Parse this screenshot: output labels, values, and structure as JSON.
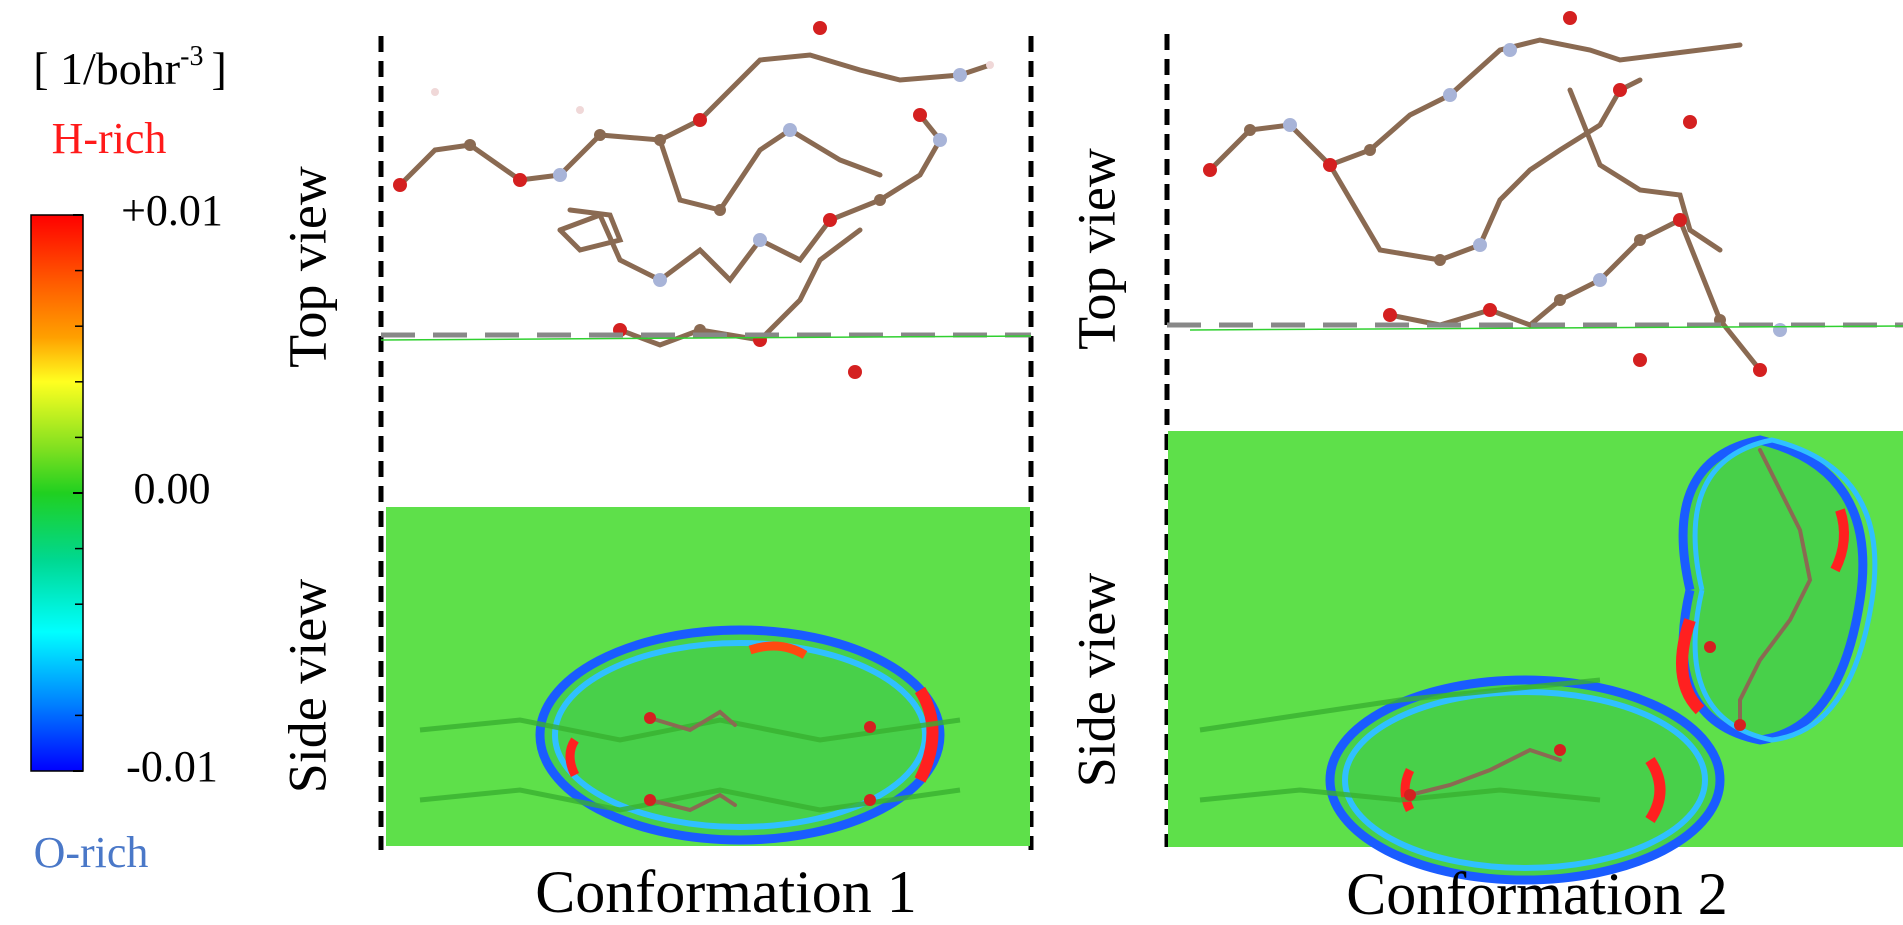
{
  "colorbar": {
    "unit_prefix": "[ 1/bohr",
    "unit_exponent": "-3",
    "unit_suffix": "]",
    "upper_label": "H-rich",
    "lower_label": "O-rich",
    "range": [
      -0.01,
      0.01
    ],
    "ticks": [
      {
        "value": 0.01,
        "label": "+0.01"
      },
      {
        "value": 0,
        "label": "0.00"
      },
      {
        "value": -0.01,
        "label": "-0.01"
      }
    ]
  },
  "panels": [
    {
      "top_label": "Top view",
      "side_label": "Side view",
      "caption": "Conformation 1"
    },
    {
      "top_label": "Top view",
      "side_label": "Side view",
      "caption": "Conformation 2"
    }
  ]
}
